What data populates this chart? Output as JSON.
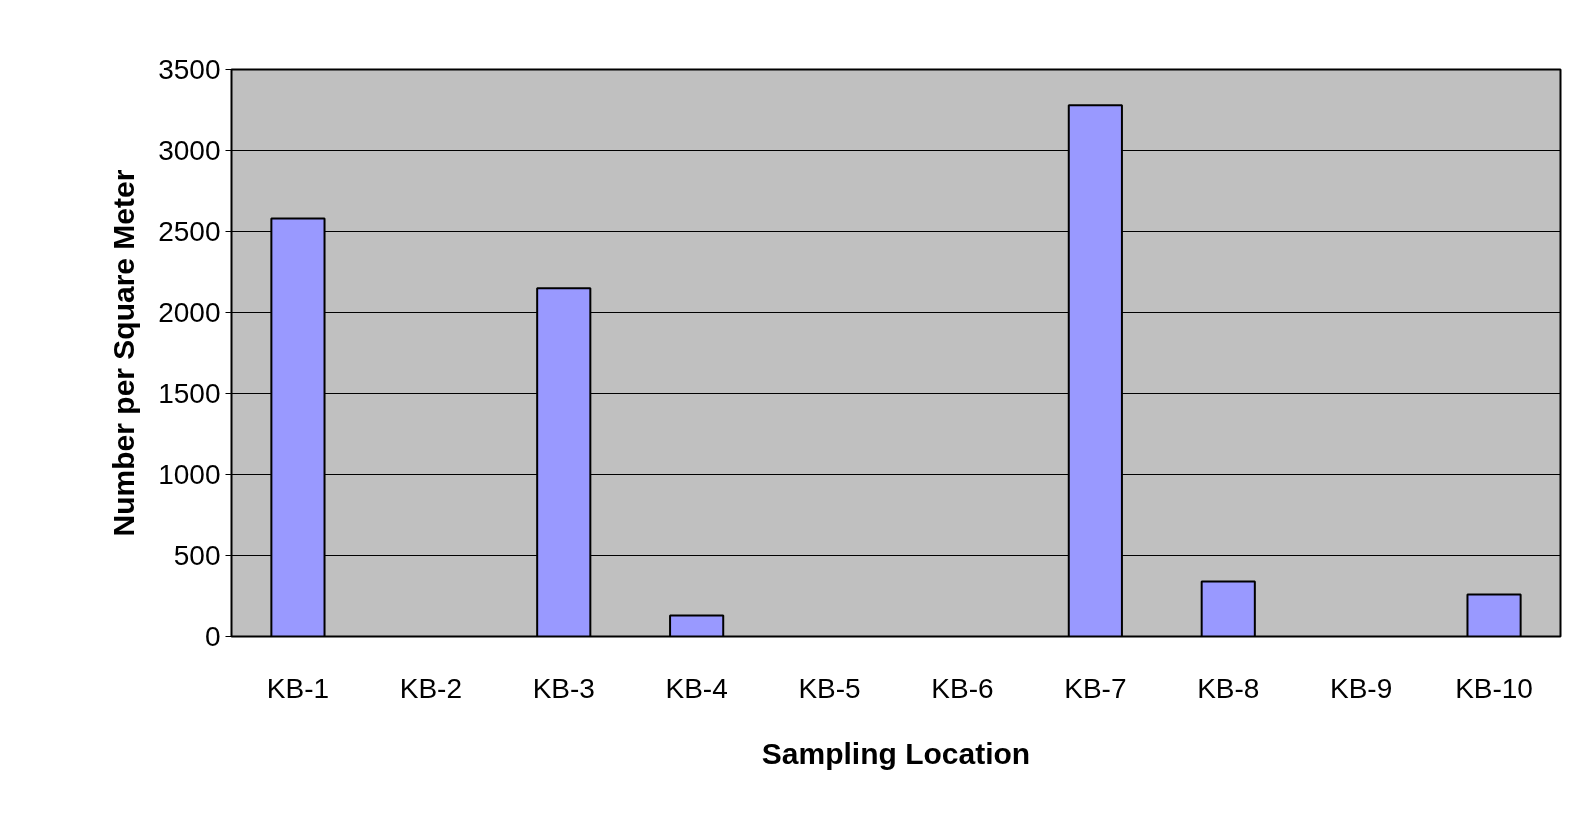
{
  "chart_data": {
    "type": "bar",
    "xlabel": "Sampling Location",
    "ylabel": "Number per Square Meter",
    "categories": [
      "KB-1",
      "KB-2",
      "KB-3",
      "KB-4",
      "KB-5",
      "KB-6",
      "KB-7",
      "KB-8",
      "KB-9",
      "KB-10"
    ],
    "values": [
      2580,
      null,
      2150,
      130,
      null,
      null,
      3280,
      340,
      null,
      260
    ],
    "color": "#9999ff",
    "ylim": [
      0,
      3500
    ],
    "yticks": [
      0,
      500,
      1000,
      1500,
      2000,
      2500,
      3000,
      3500
    ],
    "grid": "y"
  }
}
